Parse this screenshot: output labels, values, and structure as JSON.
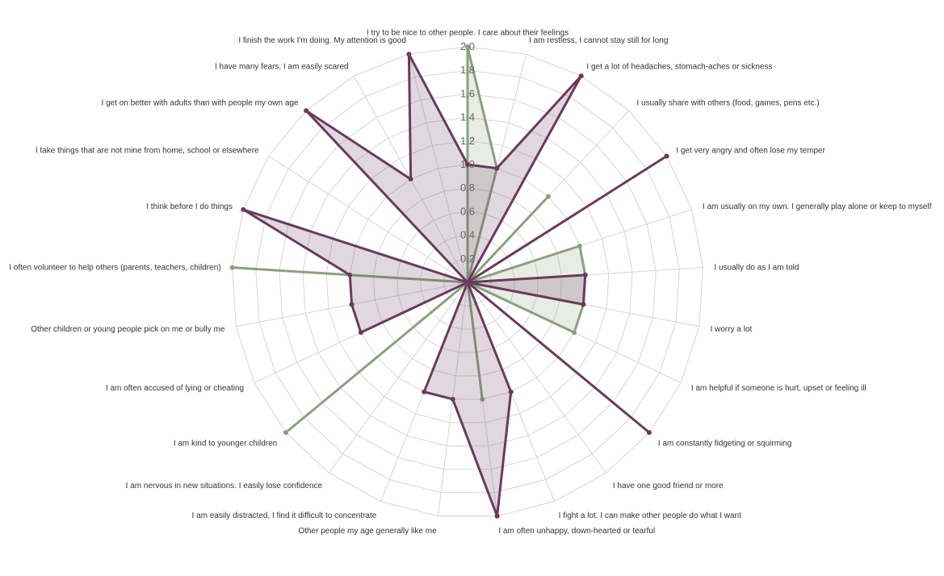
{
  "chart_data": {
    "type": "radar",
    "title": "",
    "grid": true,
    "legend": "none",
    "rlim": [
      0,
      2.0
    ],
    "rticks": [
      "0.2",
      "0.4",
      "0.6",
      "0.8",
      "1.0",
      "1.2",
      "1.4",
      "1.6",
      "1.8",
      "2.0"
    ],
    "categories": [
      "I try to be nice to other people. I care about their feelings",
      "I am restless, I cannot stay still for long",
      "I get a lot of headaches, stomach-aches or sickness",
      "I usually share with others (food, games, pens etc.)",
      "I get very angry and often lose my temper",
      "I am usually on my own. I generally play alone or keep to myself",
      "I usually do as I am told",
      "I worry a lot",
      "I am helpful if someone is hurt, upset or feeling ill",
      "I am constantly fidgeting or squirming",
      "I have one good friend or more",
      "I fight a lot. I can make other people do what I want",
      "I am often unhappy, down-hearted or tearful",
      "Other people my age generally like me",
      "I am easily distracted, I find it difficult to concentrate",
      "I am nervous in new situations. I easily lose confidence",
      "I am kind to younger children",
      "I am often accused of lying or cheating",
      "Other children or young people pick on me or bully me",
      "I often volunteer to help others (parents, teachers, children)",
      "I think before I do things",
      "I take things that are not mine from home, school or elsewhere",
      "I get on better with adults than with people my own age",
      "I have many fears, I am easily scared",
      "I finish the work I'm doing. My attention is good"
    ],
    "series": [
      {
        "color": "#8aa17e",
        "values": [
          2.0,
          1.0,
          0.0,
          1.0,
          0.0,
          1.0,
          1.0,
          1.0,
          1.0,
          0.0,
          0.0,
          0.0,
          1.0,
          0.0,
          0.0,
          0.0,
          2.0,
          0.0,
          0.0,
          2.0,
          0.0,
          0.0,
          0.0,
          0.0,
          0.0
        ]
      },
      {
        "color": "#6b3a5e",
        "values": [
          1.0,
          1.0,
          2.0,
          0.0,
          2.0,
          0.0,
          1.0,
          1.0,
          0.0,
          2.0,
          0.0,
          1.0,
          2.0,
          1.0,
          1.0,
          0.0,
          0.0,
          1.0,
          1.0,
          1.0,
          2.0,
          0.0,
          2.0,
          1.0,
          2.0
        ]
      }
    ]
  }
}
